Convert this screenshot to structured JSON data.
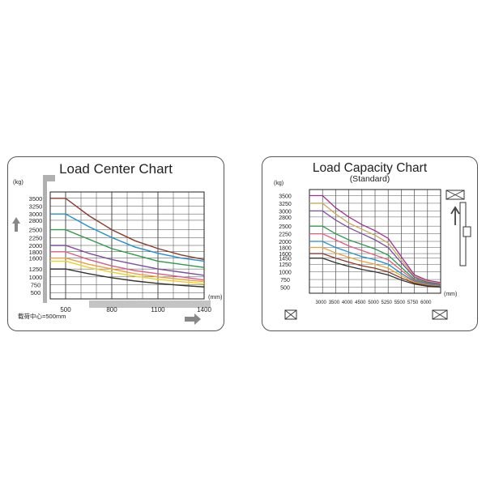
{
  "chart_data": [
    {
      "type": "line",
      "title": "Load Center Chart",
      "y_unit": "(kg)",
      "x_unit": "(mm)",
      "y_ticks": [
        3500,
        3250,
        3000,
        2800,
        2500,
        2250,
        2000,
        1800,
        1600,
        1250,
        1000,
        750,
        500
      ],
      "x_ticks": [
        500,
        800,
        1100,
        1400
      ],
      "ylim": [
        300,
        3700
      ],
      "xlim": [
        400,
        1400
      ],
      "note": "载荷中心=500mm",
      "grid": true,
      "series": [
        {
          "color": "#8b3a2a",
          "values": [
            [
              400,
              3500
            ],
            [
              500,
              3500
            ],
            [
              650,
              2950
            ],
            [
              800,
              2500
            ],
            [
              950,
              2150
            ],
            [
              1100,
              1900
            ],
            [
              1250,
              1700
            ],
            [
              1400,
              1550
            ]
          ]
        },
        {
          "color": "#1e8fcf",
          "values": [
            [
              400,
              3000
            ],
            [
              500,
              3000
            ],
            [
              650,
              2600
            ],
            [
              800,
              2250
            ],
            [
              950,
              1950
            ],
            [
              1100,
              1750
            ],
            [
              1250,
              1600
            ],
            [
              1400,
              1500
            ]
          ]
        },
        {
          "color": "#2f9a4a",
          "values": [
            [
              400,
              2500
            ],
            [
              500,
              2500
            ],
            [
              650,
              2200
            ],
            [
              800,
              1900
            ],
            [
              950,
              1700
            ],
            [
              1100,
              1500
            ],
            [
              1250,
              1400
            ],
            [
              1400,
              1300
            ]
          ]
        },
        {
          "color": "#7b4fa0",
          "values": [
            [
              400,
              2000
            ],
            [
              500,
              2000
            ],
            [
              650,
              1750
            ],
            [
              800,
              1550
            ],
            [
              950,
              1400
            ],
            [
              1100,
              1250
            ],
            [
              1250,
              1150
            ],
            [
              1400,
              1050
            ]
          ]
        },
        {
          "color": "#e25b7a",
          "values": [
            [
              400,
              1800
            ],
            [
              500,
              1800
            ],
            [
              650,
              1550
            ],
            [
              800,
              1350
            ],
            [
              950,
              1200
            ],
            [
              1100,
              1100
            ],
            [
              1250,
              1000
            ],
            [
              1400,
              900
            ]
          ]
        },
        {
          "color": "#f0a030",
          "values": [
            [
              400,
              1600
            ],
            [
              500,
              1600
            ],
            [
              650,
              1400
            ],
            [
              800,
              1250
            ],
            [
              950,
              1100
            ],
            [
              1100,
              1000
            ],
            [
              1250,
              920
            ],
            [
              1400,
              850
            ]
          ]
        },
        {
          "color": "#e6d230",
          "values": [
            [
              400,
              1500
            ],
            [
              500,
              1500
            ],
            [
              650,
              1300
            ],
            [
              800,
              1150
            ],
            [
              950,
              1020
            ],
            [
              1100,
              920
            ],
            [
              1250,
              850
            ],
            [
              1400,
              780
            ]
          ]
        },
        {
          "color": "#333333",
          "values": [
            [
              400,
              1250
            ],
            [
              500,
              1250
            ],
            [
              650,
              1100
            ],
            [
              800,
              970
            ],
            [
              950,
              870
            ],
            [
              1100,
              790
            ],
            [
              1250,
              730
            ],
            [
              1400,
              680
            ]
          ]
        }
      ]
    },
    {
      "type": "line",
      "title": "Load Capacity Chart",
      "subtitle": "(Standard)",
      "y_unit": "(kg)",
      "x_unit": "(mm)",
      "y_ticks": [
        3500,
        3250,
        3000,
        2800,
        2500,
        2250,
        2000,
        1800,
        1600,
        1450,
        1250,
        1000,
        750,
        500
      ],
      "x_ticks": [
        3000,
        3500,
        4000,
        4500,
        5000,
        5250,
        5500,
        5750,
        6000
      ],
      "ylim": [
        300,
        3700
      ],
      "grid": true,
      "series": [
        {
          "color": "#a03090",
          "values": [
            [
              0,
              3500
            ],
            [
              1,
              3500
            ],
            [
              2,
              3100
            ],
            [
              3,
              2800
            ],
            [
              4,
              2550
            ],
            [
              5,
              2350
            ],
            [
              6,
              2100
            ],
            [
              7,
              1500
            ],
            [
              8,
              900
            ],
            [
              9,
              720
            ],
            [
              10,
              650
            ]
          ]
        },
        {
          "color": "#c9a85a",
          "values": [
            [
              0,
              3250
            ],
            [
              1,
              3250
            ],
            [
              2,
              2900
            ],
            [
              3,
              2600
            ],
            [
              4,
              2400
            ],
            [
              5,
              2200
            ],
            [
              6,
              1950
            ],
            [
              7,
              1400
            ],
            [
              8,
              850
            ],
            [
              9,
              690
            ],
            [
              10,
              620
            ]
          ]
        },
        {
          "color": "#7b4fa0",
          "values": [
            [
              0,
              3000
            ],
            [
              1,
              3000
            ],
            [
              2,
              2700
            ],
            [
              3,
              2450
            ],
            [
              4,
              2250
            ],
            [
              5,
              2050
            ],
            [
              6,
              1800
            ],
            [
              7,
              1300
            ],
            [
              8,
              820
            ],
            [
              9,
              660
            ],
            [
              10,
              600
            ]
          ]
        },
        {
          "color": "#2f9a4a",
          "values": [
            [
              0,
              2500
            ],
            [
              1,
              2500
            ],
            [
              2,
              2250
            ],
            [
              3,
              2050
            ],
            [
              4,
              1900
            ],
            [
              5,
              1750
            ],
            [
              6,
              1550
            ],
            [
              7,
              1150
            ],
            [
              8,
              760
            ],
            [
              9,
              630
            ],
            [
              10,
              580
            ]
          ]
        },
        {
          "color": "#e25b7a",
          "values": [
            [
              0,
              2250
            ],
            [
              1,
              2250
            ],
            [
              2,
              2050
            ],
            [
              3,
              1850
            ],
            [
              4,
              1700
            ],
            [
              5,
              1550
            ],
            [
              6,
              1400
            ],
            [
              7,
              1050
            ],
            [
              8,
              720
            ],
            [
              9,
              610
            ],
            [
              10,
              560
            ]
          ]
        },
        {
          "color": "#1e8fcf",
          "values": [
            [
              0,
              2000
            ],
            [
              1,
              2000
            ],
            [
              2,
              1800
            ],
            [
              3,
              1650
            ],
            [
              4,
              1500
            ],
            [
              5,
              1400
            ],
            [
              6,
              1250
            ],
            [
              7,
              950
            ],
            [
              8,
              690
            ],
            [
              9,
              590
            ],
            [
              10,
              540
            ]
          ]
        },
        {
          "color": "#f0a030",
          "values": [
            [
              0,
              1800
            ],
            [
              1,
              1800
            ],
            [
              2,
              1620
            ],
            [
              3,
              1480
            ],
            [
              4,
              1350
            ],
            [
              5,
              1250
            ],
            [
              6,
              1120
            ],
            [
              7,
              880
            ],
            [
              8,
              660
            ],
            [
              9,
              570
            ],
            [
              10,
              520
            ]
          ]
        },
        {
          "color": "#8b3a2a",
          "values": [
            [
              0,
              1600
            ],
            [
              1,
              1600
            ],
            [
              2,
              1450
            ],
            [
              3,
              1320
            ],
            [
              4,
              1200
            ],
            [
              5,
              1120
            ],
            [
              6,
              1000
            ],
            [
              7,
              800
            ],
            [
              8,
              630
            ],
            [
              9,
              550
            ],
            [
              10,
              510
            ]
          ]
        },
        {
          "color": "#333333",
          "values": [
            [
              0,
              1450
            ],
            [
              1,
              1450
            ],
            [
              2,
              1300
            ],
            [
              3,
              1180
            ],
            [
              4,
              1080
            ],
            [
              5,
              1000
            ],
            [
              6,
              900
            ],
            [
              7,
              730
            ],
            [
              8,
              600
            ],
            [
              9,
              530
            ],
            [
              10,
              500
            ]
          ]
        }
      ]
    }
  ]
}
